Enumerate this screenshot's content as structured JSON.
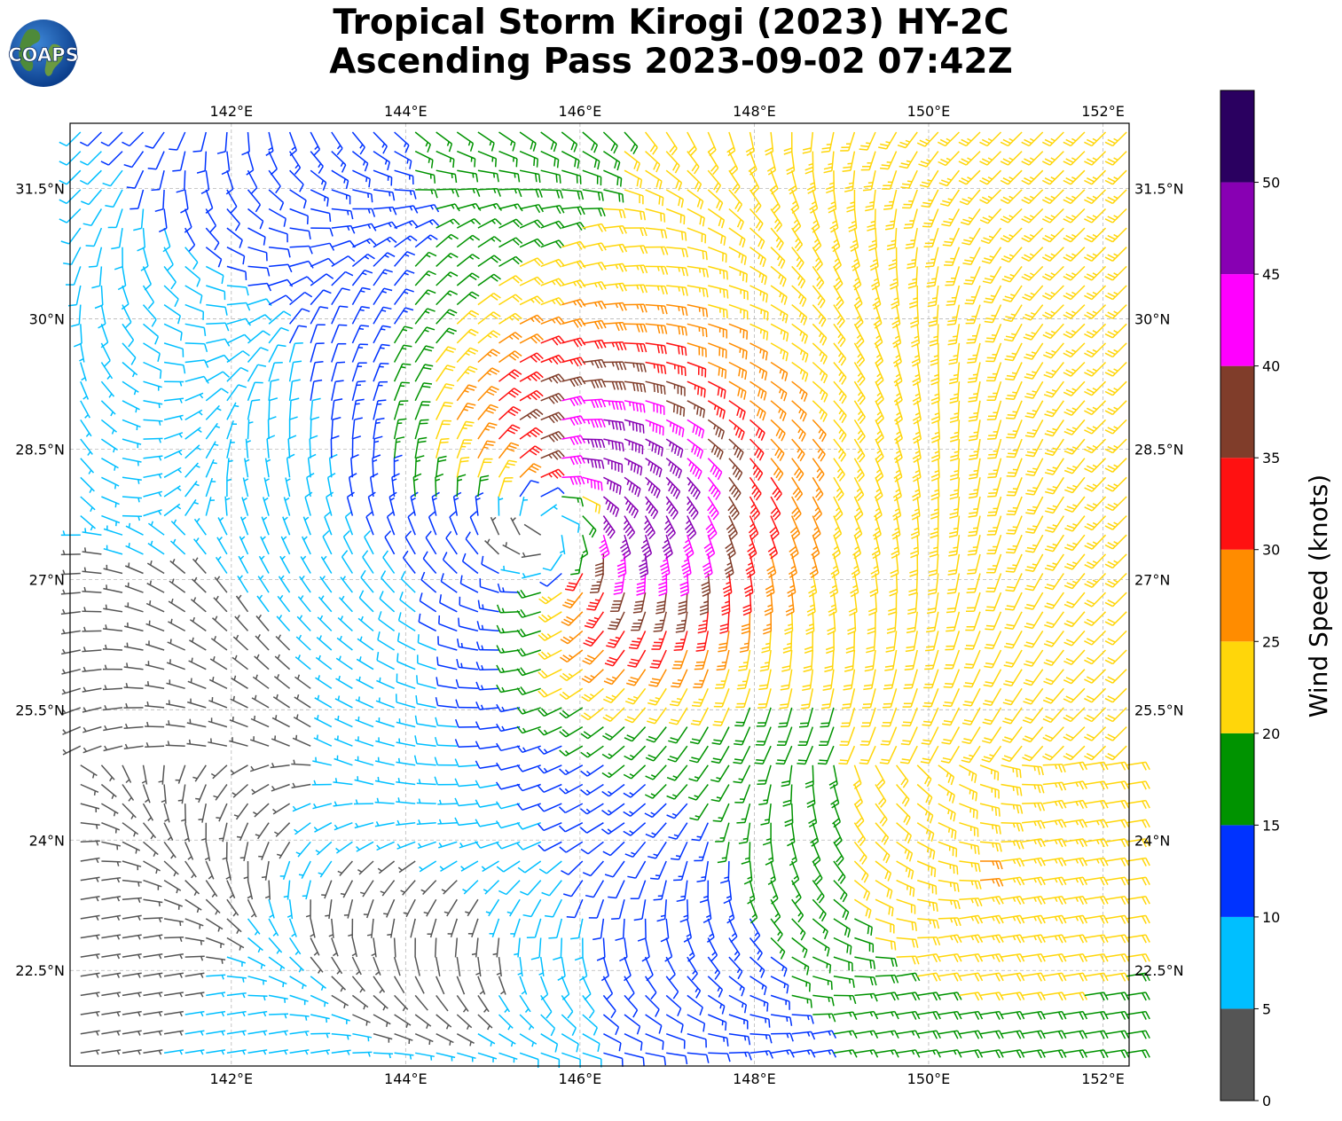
{
  "title": {
    "line1": "Tropical Storm Kirogi (2023) HY-2C",
    "line2": "Ascending Pass 2023-09-02 07:42Z"
  },
  "logo": {
    "text": "COAPS"
  },
  "map": {
    "extent": {
      "lon": [
        140.15,
        152.3
      ],
      "lat": [
        21.4,
        32.25
      ]
    },
    "lon_ticks": [
      {
        "value": 142,
        "label": "142°E"
      },
      {
        "value": 144,
        "label": "144°E"
      },
      {
        "value": 146,
        "label": "146°E"
      },
      {
        "value": 148,
        "label": "148°E"
      },
      {
        "value": 150,
        "label": "150°E"
      },
      {
        "value": 152,
        "label": "152°E"
      }
    ],
    "lat_ticks": [
      {
        "value": 31.5,
        "label": "31.5°N"
      },
      {
        "value": 30,
        "label": "30°N"
      },
      {
        "value": 28.5,
        "label": "28.5°N"
      },
      {
        "value": 27,
        "label": "27°N"
      },
      {
        "value": 25.5,
        "label": "25.5°N"
      },
      {
        "value": 24,
        "label": "24°N"
      },
      {
        "value": 22.5,
        "label": "22.5°N"
      }
    ],
    "grid": true,
    "storm_center": {
      "lon": 145.6,
      "lat": 27.55
    }
  },
  "colorbar": {
    "label": "Wind Speed (knots)",
    "bins": [
      {
        "min": 0,
        "max": 5,
        "color": "#555555"
      },
      {
        "min": 5,
        "max": 10,
        "color": "#00bfff"
      },
      {
        "min": 10,
        "max": 15,
        "color": "#0033ff"
      },
      {
        "min": 15,
        "max": 20,
        "color": "#009300"
      },
      {
        "min": 20,
        "max": 25,
        "color": "#ffd60a"
      },
      {
        "min": 25,
        "max": 30,
        "color": "#ff8c00"
      },
      {
        "min": 30,
        "max": 35,
        "color": "#ff1111"
      },
      {
        "min": 35,
        "max": 40,
        "color": "#803d2a"
      },
      {
        "min": 40,
        "max": 45,
        "color": "#ff00ff"
      },
      {
        "min": 45,
        "max": 50,
        "color": "#8800b3"
      },
      {
        "min": 50,
        "max": 55,
        "color": "#2a0060"
      }
    ],
    "tick_labels": [
      "0",
      "5",
      "10",
      "15",
      "20",
      "25",
      "30",
      "35",
      "40",
      "45",
      "50"
    ]
  }
}
